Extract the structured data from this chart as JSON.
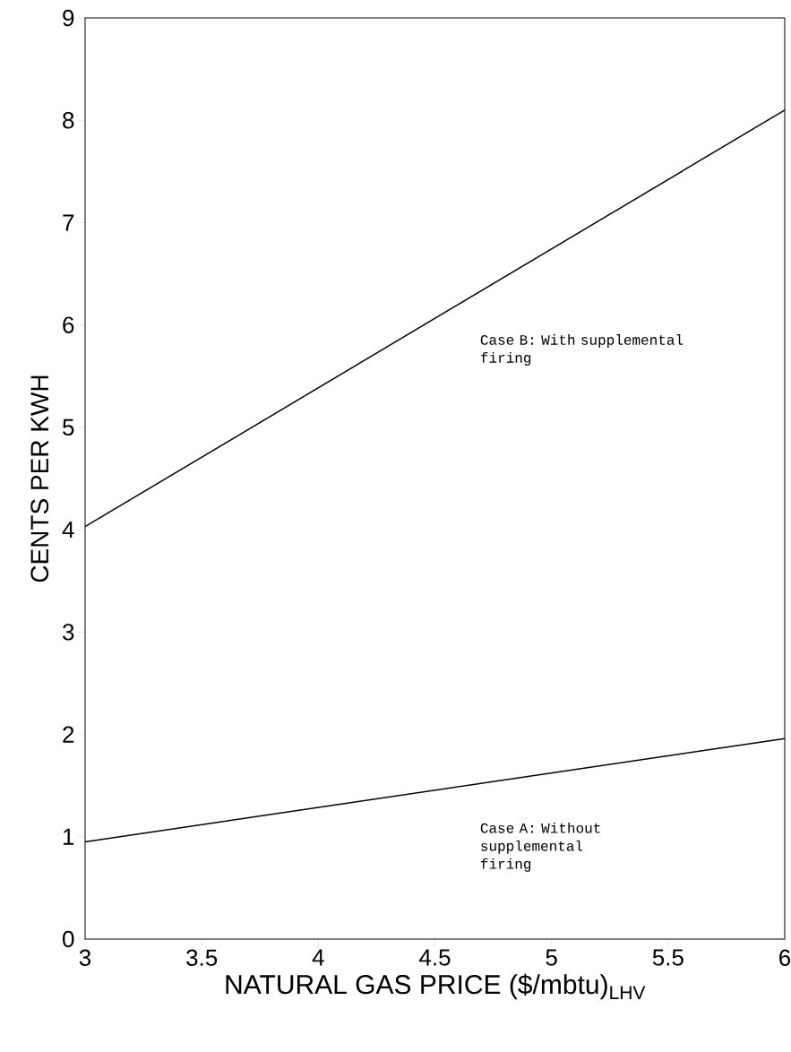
{
  "chart_data": {
    "type": "line",
    "xlabel": "NATURAL GAS PRICE ($/mbtu)$_{LHV}$",
    "ylabel": "CENTS PER KWH",
    "x": [
      3,
      6
    ],
    "series": [
      {
        "name": "Case B: With supplemental firing",
        "color": "#000000",
        "values": [
          4.03,
          8.1
        ]
      },
      {
        "name": "Case A: Without supplemental firing",
        "color": "#000000",
        "values": [
          0.95,
          1.96
        ]
      }
    ],
    "xlim": [
      3,
      6
    ],
    "ylim": [
      0,
      9
    ],
    "xticks": [
      3,
      3.5,
      4,
      4.5,
      5,
      5.5,
      6
    ],
    "yticks": [
      0,
      1,
      2,
      3,
      4,
      5,
      6,
      7,
      8,
      9
    ],
    "grid": false,
    "marker": "none",
    "line_style": "solid"
  }
}
